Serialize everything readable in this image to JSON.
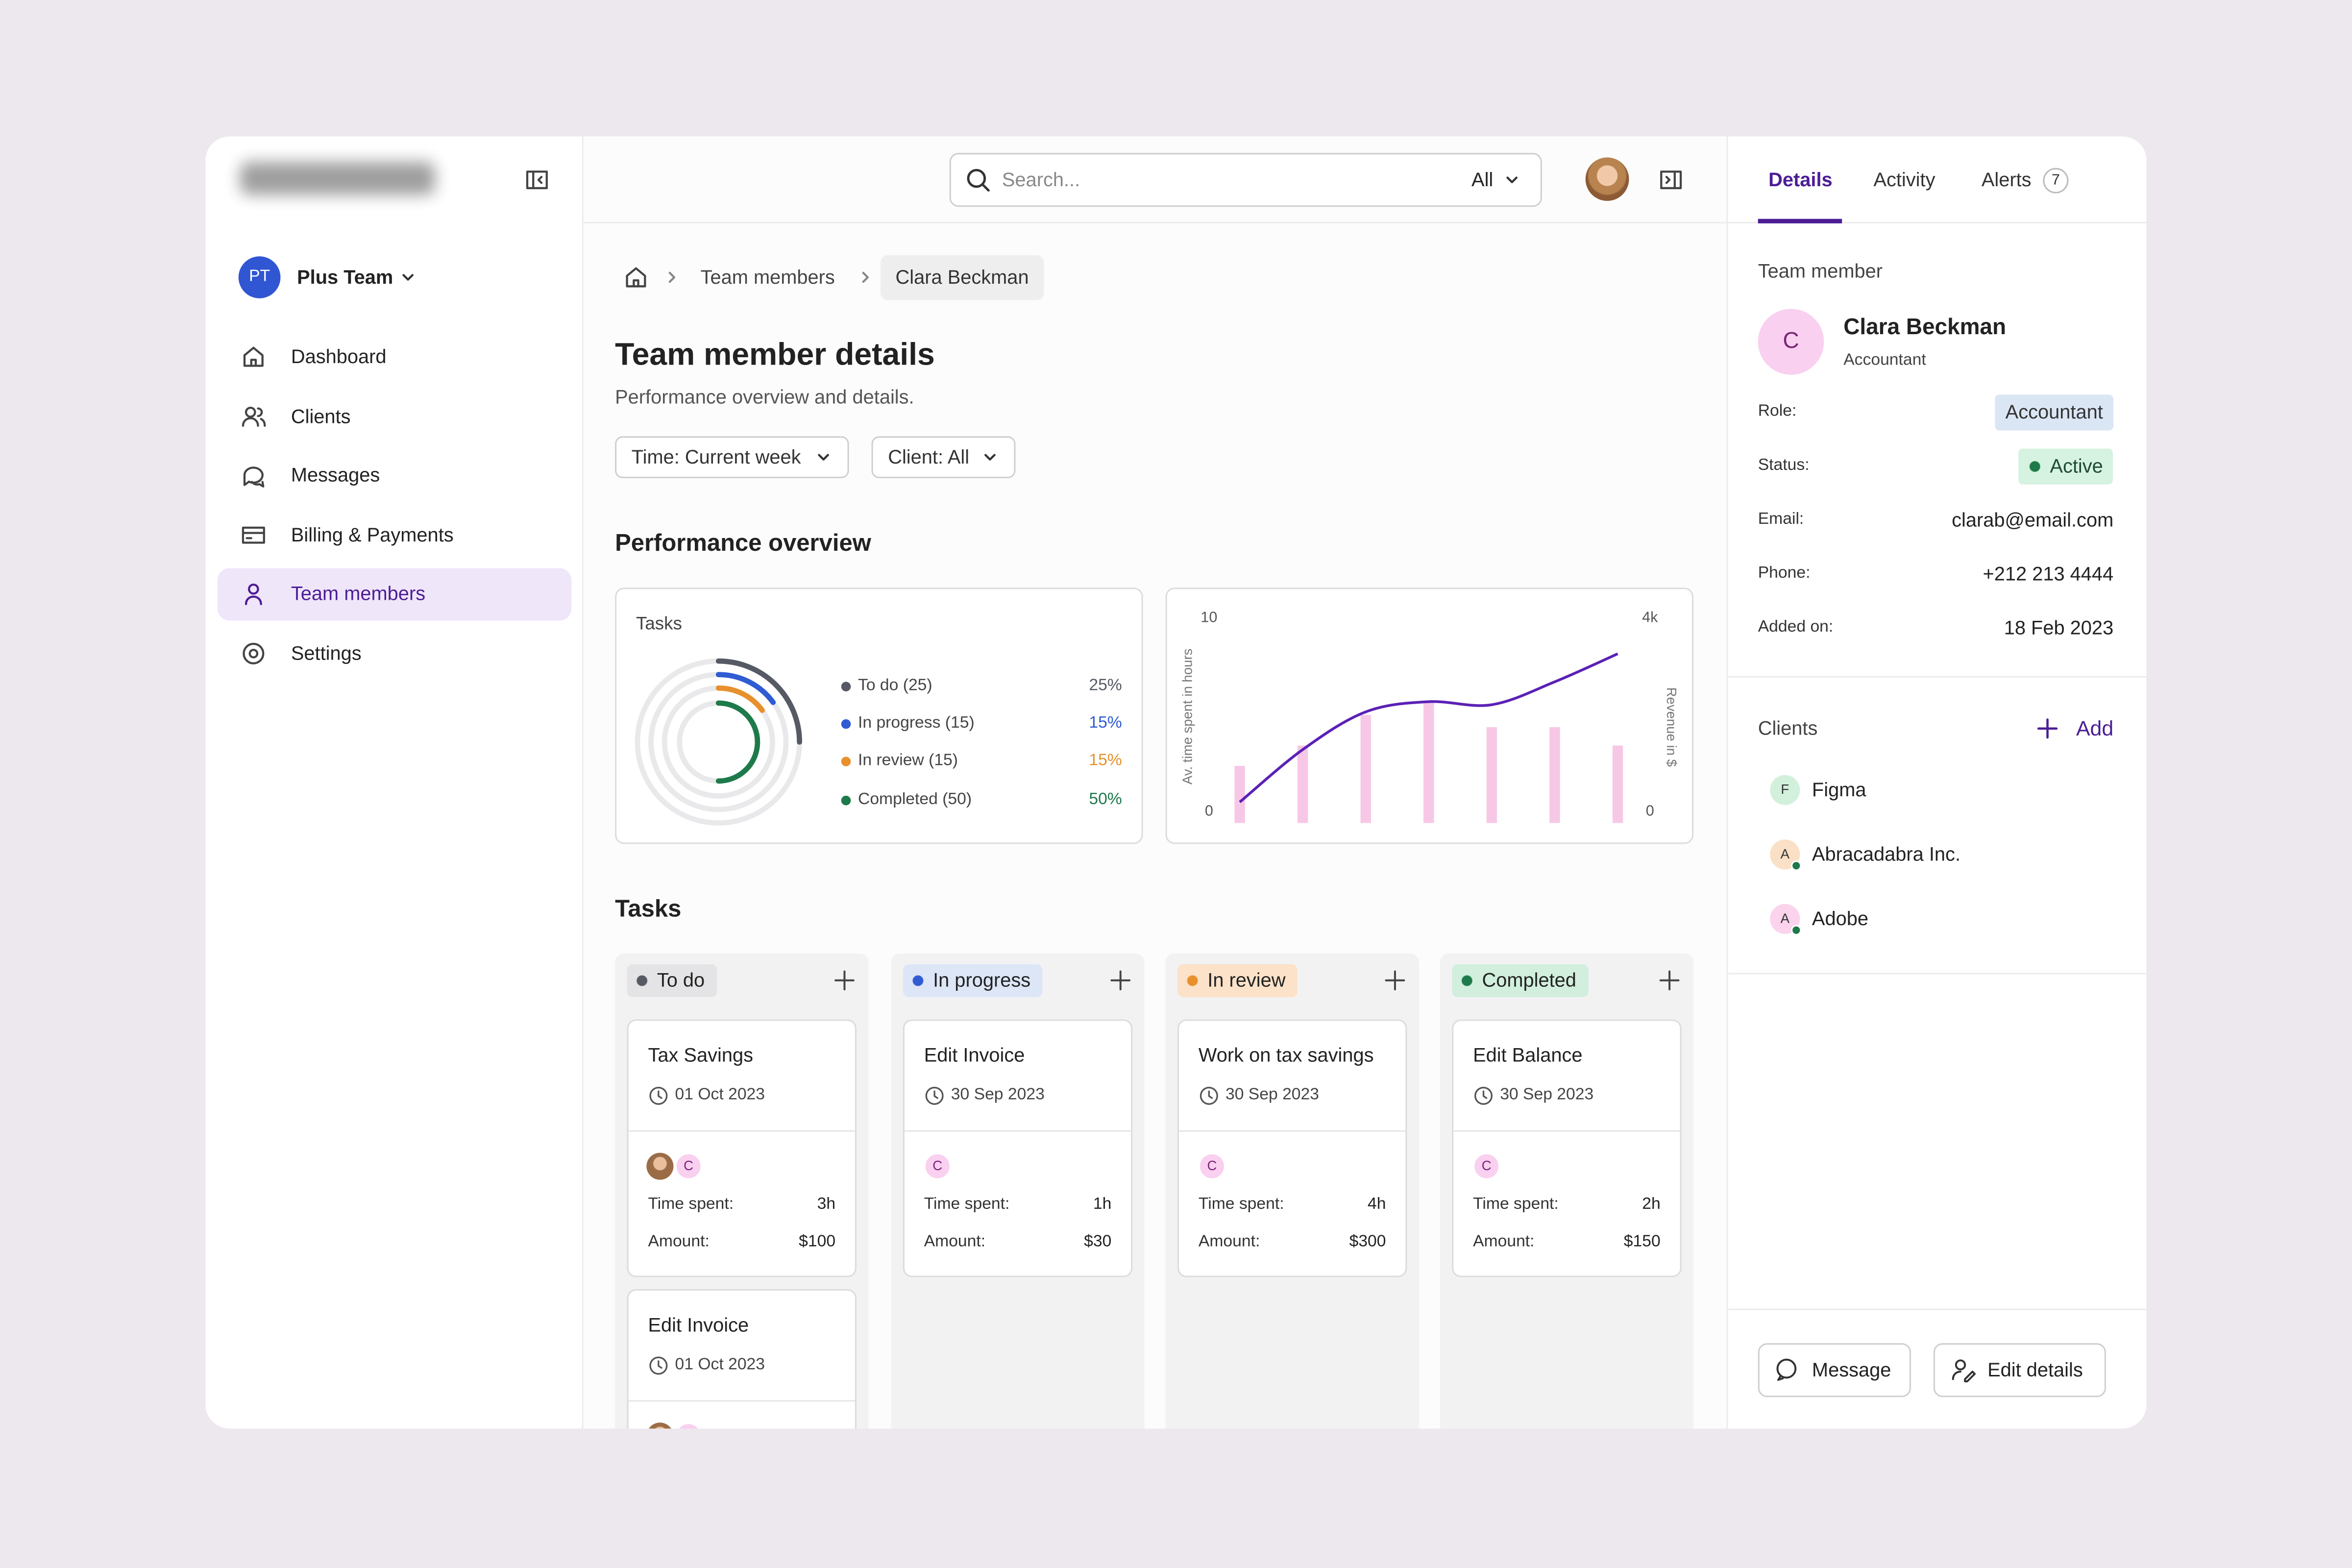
{
  "sidebar": {
    "team_initials": "PT",
    "team": "Plus Team",
    "nav": [
      "Dashboard",
      "Clients",
      "Messages",
      "Billing & Payments",
      "Team members",
      "Settings"
    ]
  },
  "topbar": {
    "search_placeholder": "Search...",
    "scope": "All"
  },
  "breadcrumb": [
    "Team members",
    "Clara Beckman"
  ],
  "header": {
    "title": "Team member details",
    "subtitle": "Performance overview and details."
  },
  "filters": [
    "Time: Current week",
    "Client: All"
  ],
  "performance": {
    "title": "Performance overview",
    "tasks_card": {
      "title": "Tasks",
      "chart_data": {
        "type": "donut",
        "categories": [
          "To do (25)",
          "In progress (15)",
          "In review (15)",
          "Completed (50)"
        ],
        "values": [
          25,
          15,
          15,
          50
        ],
        "value_labels": [
          "25%",
          "15%",
          "15%",
          "50%"
        ],
        "colors": [
          "#555a64",
          "#2f5bd3",
          "#e8902c",
          "#1e7a4a"
        ]
      }
    },
    "trend_card": {
      "chart_data": {
        "type": "bar-line",
        "ylabel": "Av. time spent in hours",
        "y2label": "Revenue in $",
        "categories": [
          null,
          null,
          null,
          null,
          null,
          null,
          null
        ],
        "ylim": [
          0,
          10
        ],
        "yticks": [
          0,
          10
        ],
        "y2lim": [
          0,
          4000
        ],
        "y2ticks": [
          0,
          {
            "value": 4000,
            "label": "4k"
          }
        ],
        "series": [
          {
            "type": "bar",
            "color": "#f7c8e6",
            "values": [
              2.8,
              3.8,
              5.3,
              6.0,
              4.7,
              4.7,
              3.8
            ]
          },
          {
            "type": "line",
            "axis": "y2",
            "color": "#5b21b6",
            "values": [
              410,
              1440,
              2180,
              2380,
              2320,
              2770,
              3320
            ]
          }
        ]
      }
    }
  },
  "tasks": {
    "title": "Tasks",
    "time_label": "Time spent:",
    "amount_label": "Amount:",
    "columns": [
      {
        "name": "To do",
        "color": "#555a64",
        "bg": "#e4e4e6",
        "cards": [
          {
            "title": "Tax Savings",
            "date": "01 Oct 2023",
            "avatar": "C",
            "time": "3h",
            "amount": "$100"
          },
          {
            "title": "Edit Invoice",
            "date": "01 Oct 2023"
          }
        ]
      },
      {
        "name": "In progress",
        "color": "#2f5bd3",
        "bg": "#dde6f7",
        "cards": [
          {
            "title": "Edit Invoice",
            "date": "30 Sep 2023",
            "avatar": "C",
            "time": "1h",
            "amount": "$30"
          }
        ]
      },
      {
        "name": "In review",
        "color": "#e8902c",
        "bg": "#fbe2c8",
        "cards": [
          {
            "title": "Work on tax savings",
            "date": "30 Sep 2023",
            "avatar": "C",
            "time": "4h",
            "amount": "$300"
          }
        ]
      },
      {
        "name": "Completed",
        "color": "#1e7a4a",
        "bg": "#d1efdc",
        "cards": [
          {
            "title": "Edit Balance",
            "date": "30 Sep 2023",
            "avatar": "C",
            "time": "2h",
            "amount": "$150"
          }
        ]
      }
    ]
  },
  "details": {
    "tabs": [
      "Details",
      "Activity",
      "Alerts"
    ],
    "alerts_count": 7,
    "section": "Team member",
    "member": {
      "initial": "C",
      "name": "Clara Beckman",
      "title": "Accountant"
    },
    "fields": [
      {
        "label": "Role:",
        "value": "Accountant"
      },
      {
        "label": "Status:",
        "value": "Active"
      },
      {
        "label": "Email:",
        "value": "clarab@email.com"
      },
      {
        "label": "Phone:",
        "value": "+212 213 4444"
      },
      {
        "label": "Added on:",
        "value": "18 Feb 2023"
      }
    ],
    "clients": {
      "title": "Clients",
      "add": "Add",
      "list": [
        {
          "initial": "F",
          "name": "Figma"
        },
        {
          "initial": "A",
          "name": "Abracadabra Inc."
        },
        {
          "initial": "A",
          "name": "Adobe"
        }
      ]
    },
    "actions": [
      "Message",
      "Edit details"
    ]
  }
}
